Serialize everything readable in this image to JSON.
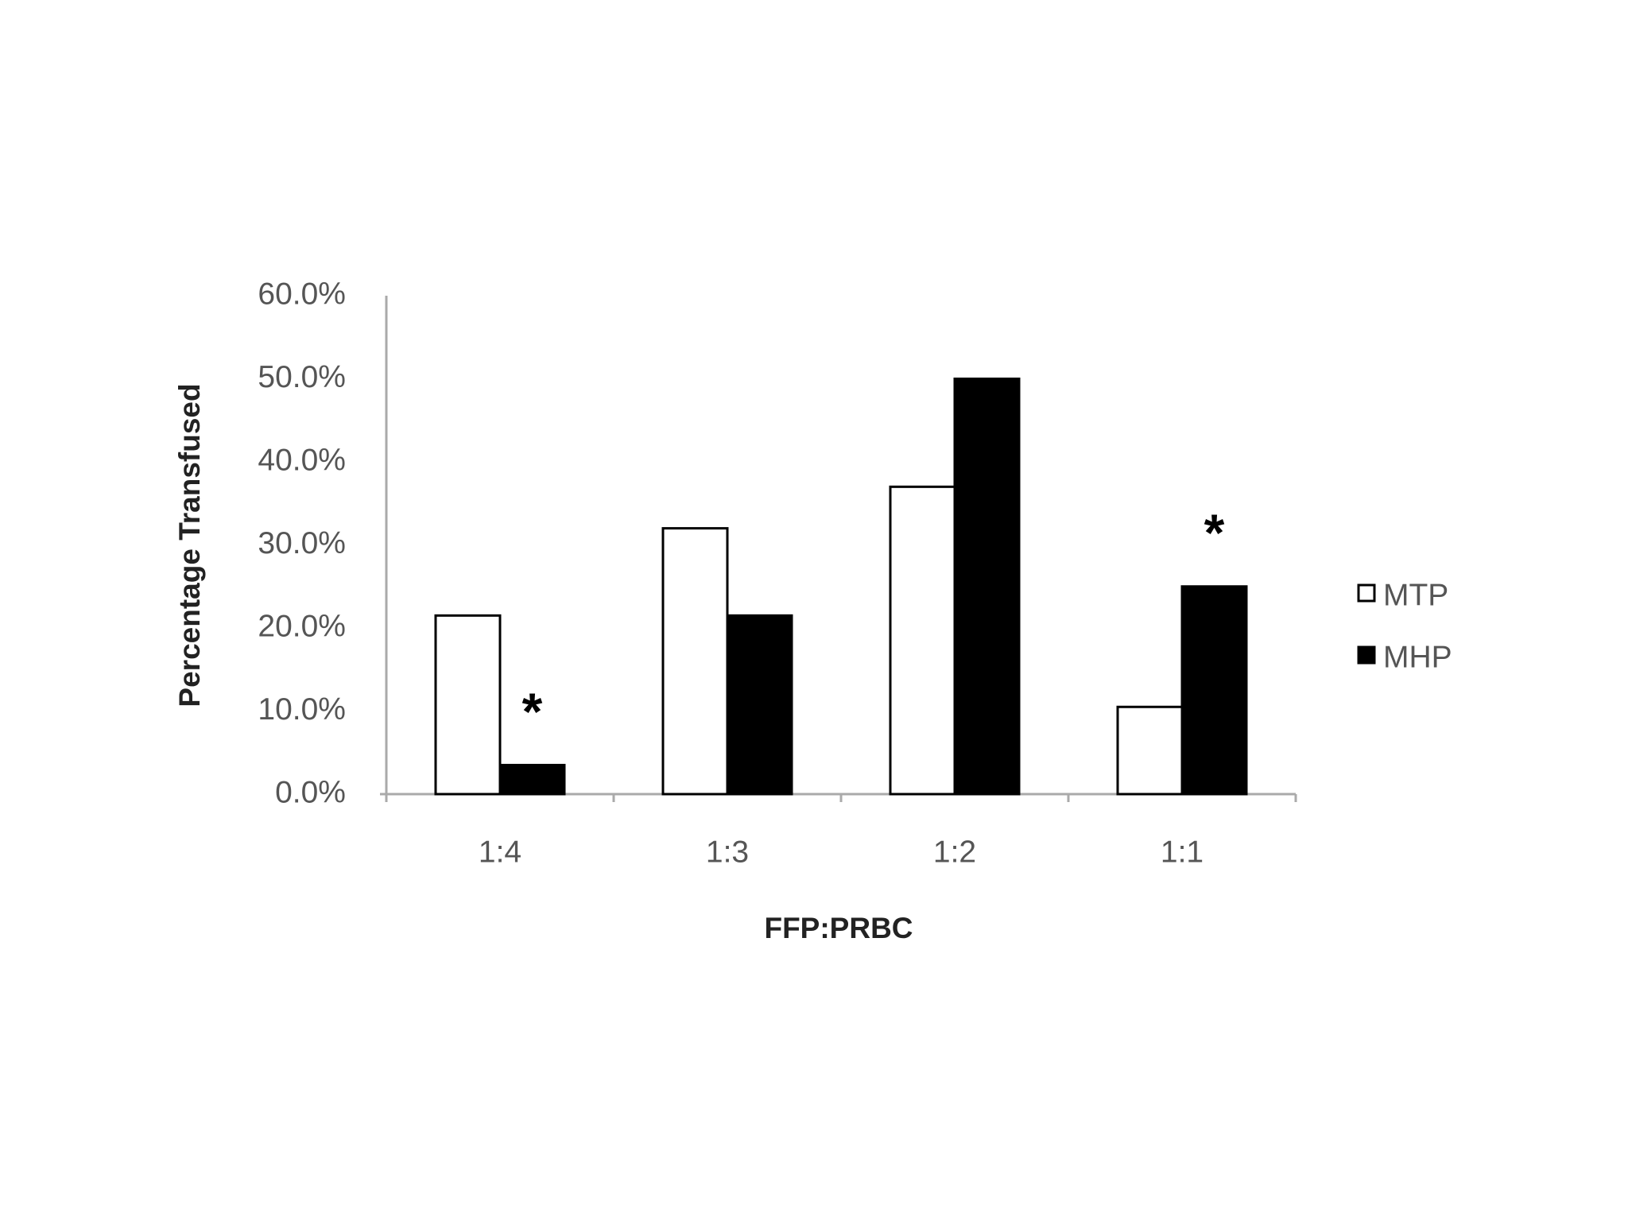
{
  "chart_data": {
    "type": "bar",
    "y_label": "Percentage Transfused",
    "x_label": "FFP:PRBC",
    "categories": [
      "1:4",
      "1:3",
      "1:2",
      "1:1"
    ],
    "series": [
      {
        "name": "MTP",
        "color": "#ffffff",
        "values": [
          21.5,
          32,
          37,
          10.5
        ]
      },
      {
        "name": "MHP",
        "color": "#000000",
        "values": [
          3.5,
          21.5,
          50,
          25
        ],
        "annotations": [
          "*",
          null,
          null,
          "*"
        ]
      }
    ],
    "ylim": [
      0,
      60
    ],
    "yticks": [
      {
        "value": 0,
        "label": "0.0%"
      },
      {
        "value": 10,
        "label": "10.0%"
      },
      {
        "value": 20,
        "label": "20.0%"
      },
      {
        "value": 30,
        "label": "30.0%"
      },
      {
        "value": 40,
        "label": "40.0%"
      },
      {
        "value": 50,
        "label": "50.0%"
      },
      {
        "value": 60,
        "label": "60.0%"
      }
    ],
    "grid": false,
    "legend": "right"
  }
}
